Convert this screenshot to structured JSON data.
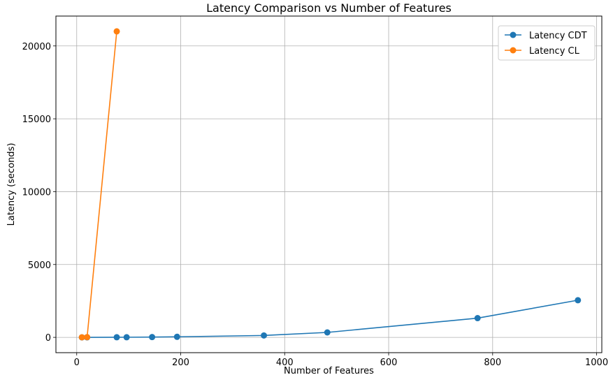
{
  "chart_data": {
    "type": "line",
    "title": "Latency Comparison vs Number of Features",
    "xlabel": "Number of Features",
    "ylabel": "Latency (seconds)",
    "xlim": [
      -40,
      1010
    ],
    "ylim": [
      -1050,
      22050
    ],
    "xticks": [
      0,
      200,
      400,
      600,
      800,
      1000
    ],
    "yticks": [
      0,
      5000,
      10000,
      15000,
      20000
    ],
    "grid": true,
    "legend_position": "top-right",
    "series": [
      {
        "name": "Latency CDT",
        "color": "#1f77b4",
        "points": [
          {
            "x": 10,
            "y": 1
          },
          {
            "x": 20,
            "y": 3
          },
          {
            "x": 77,
            "y": 8
          },
          {
            "x": 96,
            "y": 10
          },
          {
            "x": 145,
            "y": 20
          },
          {
            "x": 193,
            "y": 40
          },
          {
            "x": 360,
            "y": 130
          },
          {
            "x": 482,
            "y": 340
          },
          {
            "x": 771,
            "y": 1320
          },
          {
            "x": 964,
            "y": 2550
          }
        ]
      },
      {
        "name": "Latency CL",
        "color": "#ff7f0e",
        "points": [
          {
            "x": 10,
            "y": 5
          },
          {
            "x": 20,
            "y": 15
          },
          {
            "x": 77,
            "y": 21000
          }
        ]
      }
    ]
  }
}
